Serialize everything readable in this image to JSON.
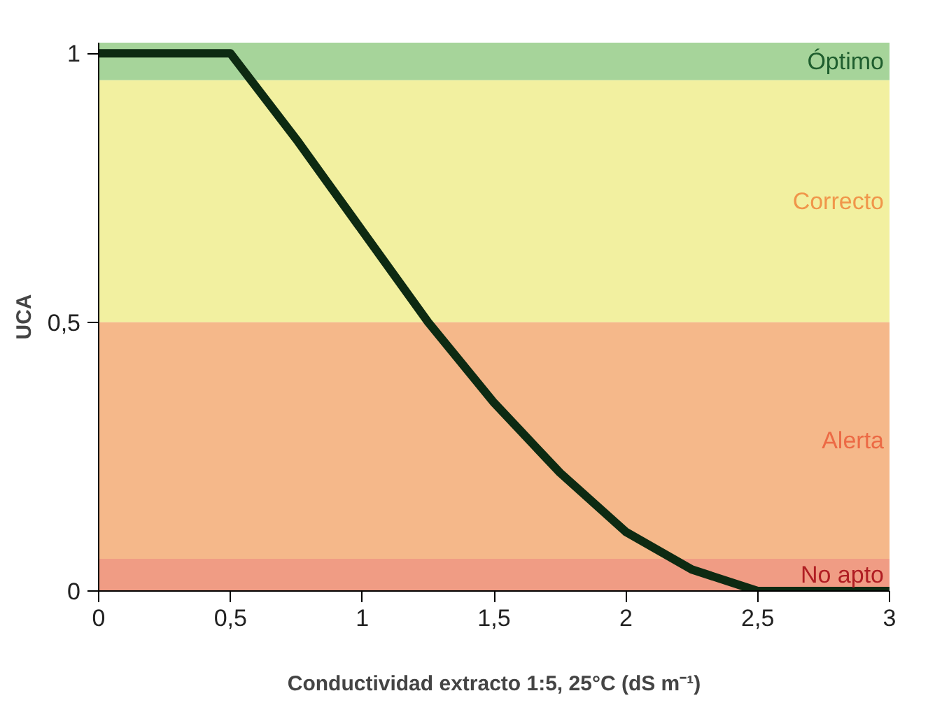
{
  "chart_data": {
    "type": "line",
    "xlabel": "Conductividad extracto 1:5, 25°C (dS m⁻¹)",
    "ylabel": "UCA",
    "x": [
      0,
      0.5,
      0.75,
      1,
      1.25,
      1.5,
      1.75,
      2,
      2.25,
      2.5,
      3
    ],
    "series": [
      {
        "color": "#0d2a12",
        "values": [
          1,
          1,
          0.84,
          0.67,
          0.5,
          0.35,
          0.22,
          0.11,
          0.04,
          0,
          0
        ]
      }
    ],
    "xlim": [
      0,
      3
    ],
    "ylim": [
      0,
      1.02
    ],
    "xticks": [
      0,
      {
        "value": 0.5,
        "label": "0,5"
      },
      1,
      {
        "value": 1.5,
        "label": "1,5"
      },
      2,
      {
        "value": 2.5,
        "label": "2,5"
      },
      3
    ],
    "yticks": [
      0,
      {
        "value": 0.5,
        "label": "0,5"
      },
      1
    ],
    "bands": [
      {
        "axis": "y",
        "from": 0.95,
        "to": 1.02,
        "label": "Óptimo",
        "color": "#a6d49a"
      },
      {
        "axis": "y",
        "from": 0.5,
        "to": 0.95,
        "label": "Correcto",
        "color": "#f2f0a0"
      },
      {
        "axis": "y",
        "from": 0.06,
        "to": 0.5,
        "label": "Alerta",
        "color": "#f5b88a"
      },
      {
        "axis": "y",
        "from": 0,
        "to": 0.06,
        "label": "No apto",
        "color": "#f09c84"
      }
    ]
  }
}
